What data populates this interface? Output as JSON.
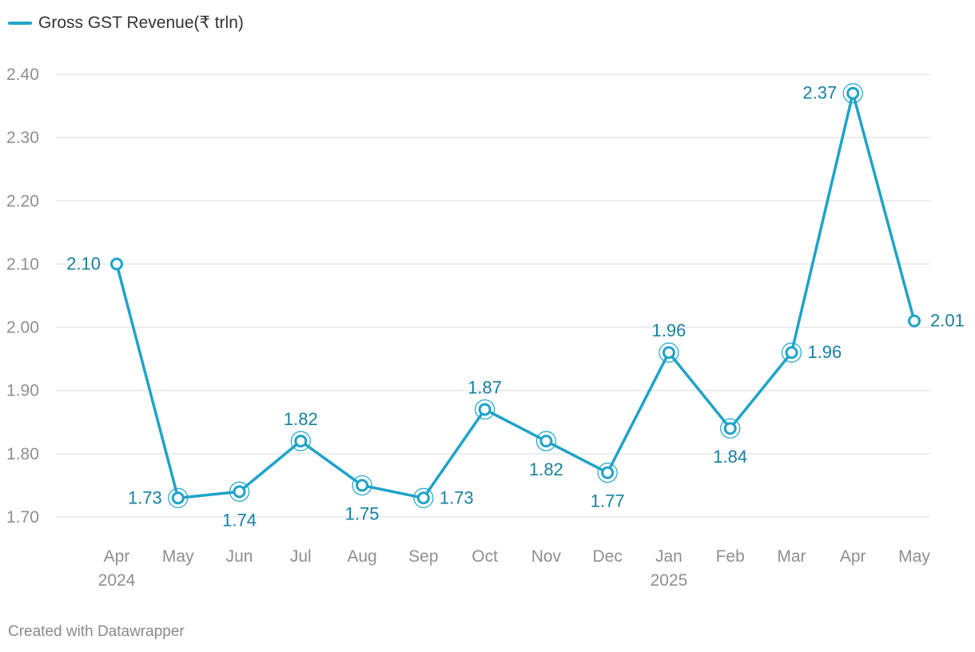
{
  "footer": "Created with Datawrapper",
  "chart_data": {
    "type": "line",
    "title": "",
    "xlabel": "",
    "ylabel": "",
    "x": [
      "Apr",
      "May",
      "Jun",
      "Jul",
      "Aug",
      "Sep",
      "Oct",
      "Nov",
      "Dec",
      "Jan",
      "Feb",
      "Mar",
      "Apr",
      "May"
    ],
    "x_sublabels": [
      "2024",
      "",
      "",
      "",
      "",
      "",
      "",
      "",
      "",
      "2025",
      "",
      "",
      "",
      ""
    ],
    "series": [
      {
        "name": "Gross GST Revenue(₹ trln)",
        "values": [
          2.1,
          1.73,
          1.74,
          1.82,
          1.75,
          1.73,
          1.87,
          1.82,
          1.77,
          1.96,
          1.84,
          1.96,
          2.37,
          2.01
        ],
        "labels": [
          "2.10",
          "1.73",
          "1.74",
          "1.82",
          "1.75",
          "1.73",
          "1.87",
          "1.82",
          "1.77",
          "1.96",
          "1.84",
          "1.96",
          "2.37",
          "2.01"
        ]
      }
    ],
    "ylim": [
      1.7,
      2.4
    ],
    "yticks": [
      "1.70",
      "1.80",
      "1.90",
      "2.00",
      "2.10",
      "2.20",
      "2.30",
      "2.40"
    ],
    "grid": true,
    "legend": "top-left",
    "colors": {
      "line": "#1fa3c8",
      "label": "#1780a0",
      "grid": "#e2e2e2",
      "tick": "#8f8f8f"
    }
  }
}
